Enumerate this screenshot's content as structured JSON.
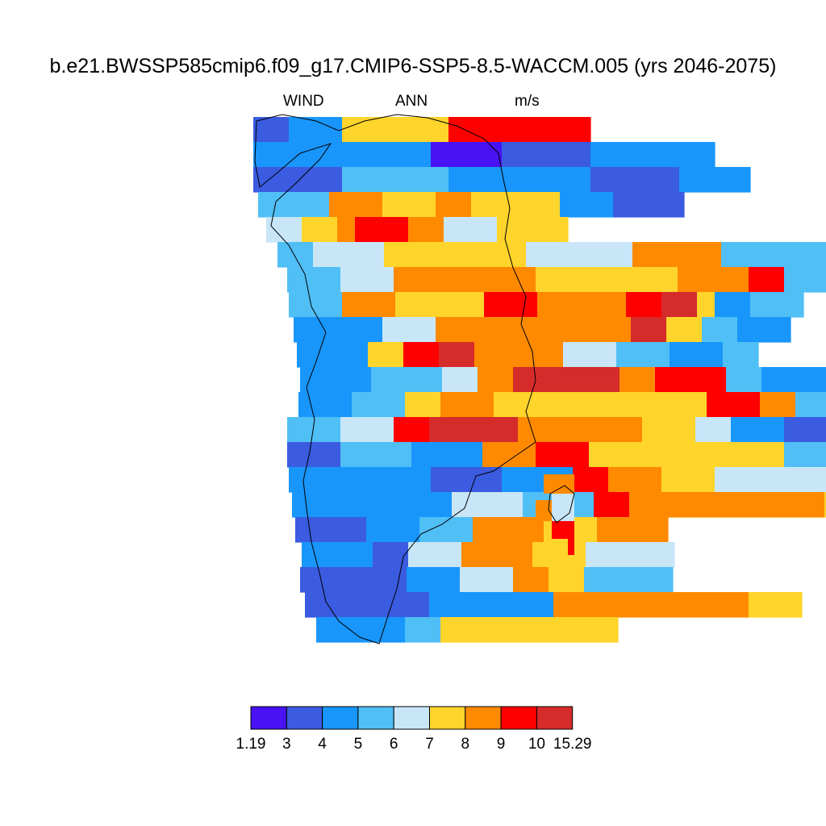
{
  "title": "b.e21.BWSSP585cmip6.f09_g17.CMIP6-SSP5-8.5-WACCM.005 (yrs 2046-2075)",
  "subtitle": {
    "variable": "WIND",
    "period": "ANN",
    "units": "m/s"
  },
  "colorbar": {
    "labels": [
      "1.19",
      "3",
      "4",
      "5",
      "6",
      "7",
      "8",
      "9",
      "10",
      "15.29"
    ],
    "colors": [
      "#4812f5",
      "#3b5be0",
      "#1896fb",
      "#50bff5",
      "#c8e6f7",
      "#ffd42b",
      "#ff8a00",
      "#ff0000",
      "#d62b2b"
    ],
    "bins": [
      [
        1.19,
        3
      ],
      [
        3,
        4
      ],
      [
        4,
        5
      ],
      [
        5,
        6
      ],
      [
        6,
        7
      ],
      [
        7,
        8
      ],
      [
        8,
        9
      ],
      [
        9,
        10
      ],
      [
        10,
        15.29
      ]
    ]
  },
  "map_data": {
    "region": "Greenland",
    "field": "WIND",
    "grid_rows_north_to_south": [
      [
        [
          1,
          2
        ],
        [
          2,
          3
        ],
        [
          5,
          6
        ],
        [
          0,
          0
        ],
        [
          7,
          8
        ]
      ],
      [
        [
          2,
          4
        ],
        [
          2,
          6
        ],
        [
          0,
          3
        ],
        [
          0,
          1
        ],
        [
          1,
          5
        ],
        [
          2,
          7
        ]
      ],
      [
        [
          1,
          3
        ],
        [
          1,
          2
        ],
        [
          3,
          6
        ],
        [
          2,
          8
        ],
        [
          1,
          5
        ],
        [
          2,
          4
        ]
      ],
      [
        [
          3,
          4
        ],
        [
          6,
          3
        ],
        [
          5,
          3
        ],
        [
          6,
          2
        ],
        [
          5,
          5
        ],
        [
          2,
          3
        ],
        [
          1,
          4
        ]
      ],
      [
        [
          4,
          2
        ],
        [
          5,
          2
        ],
        [
          6,
          1
        ],
        [
          7,
          3
        ],
        [
          6,
          2
        ],
        [
          4,
          3
        ],
        [
          5,
          4
        ]
      ],
      [
        [
          3,
          2
        ],
        [
          4,
          4
        ],
        [
          5,
          8
        ],
        [
          4,
          6
        ],
        [
          6,
          5
        ],
        [
          3,
          6
        ],
        [
          2,
          2
        ],
        [
          2,
          4
        ]
      ],
      [
        [
          3,
          3
        ],
        [
          4,
          3
        ],
        [
          6,
          8
        ],
        [
          5,
          8
        ],
        [
          6,
          4
        ],
        [
          7,
          2
        ],
        [
          3,
          4
        ]
      ],
      [
        [
          3,
          3
        ],
        [
          6,
          3
        ],
        [
          5,
          5
        ],
        [
          7,
          3
        ],
        [
          6,
          5
        ],
        [
          7,
          2
        ],
        [
          8,
          2
        ],
        [
          5,
          1
        ],
        [
          2,
          2
        ],
        [
          3,
          3
        ]
      ],
      [
        [
          2,
          5
        ],
        [
          4,
          3
        ],
        [
          6,
          5
        ],
        [
          6,
          6
        ],
        [
          8,
          2
        ],
        [
          5,
          2
        ],
        [
          3,
          2
        ],
        [
          2,
          3
        ]
      ],
      [
        [
          2,
          4
        ],
        [
          5,
          2
        ],
        [
          7,
          2
        ],
        [
          8,
          2
        ],
        [
          6,
          5
        ],
        [
          4,
          3
        ],
        [
          3,
          3
        ],
        [
          2,
          3
        ],
        [
          3,
          2
        ]
      ],
      [
        [
          2,
          4
        ],
        [
          3,
          4
        ],
        [
          4,
          2
        ],
        [
          6,
          2
        ],
        [
          8,
          3
        ],
        [
          8,
          3
        ],
        [
          6,
          2
        ],
        [
          7,
          4
        ],
        [
          3,
          2
        ],
        [
          2,
          6
        ]
      ],
      [
        [
          2,
          3
        ],
        [
          3,
          3
        ],
        [
          5,
          2
        ],
        [
          6,
          3
        ],
        [
          5,
          8
        ],
        [
          5,
          4
        ],
        [
          7,
          3
        ],
        [
          6,
          2
        ],
        [
          3,
          4
        ],
        [
          2,
          4
        ]
      ],
      [
        [
          3,
          3
        ],
        [
          4,
          3
        ],
        [
          7,
          2
        ],
        [
          8,
          5
        ],
        [
          6,
          4
        ],
        [
          6,
          3
        ],
        [
          5,
          3
        ],
        [
          4,
          2
        ],
        [
          2,
          3
        ],
        [
          1,
          4
        ]
      ],
      [
        [
          1,
          3
        ],
        [
          3,
          4
        ],
        [
          2,
          4
        ],
        [
          6,
          3
        ],
        [
          7,
          3
        ],
        [
          5,
          4
        ],
        [
          5,
          5
        ],
        [
          5,
          2
        ],
        [
          3,
          4
        ],
        [
          1,
          4
        ]
      ],
      [
        [
          2,
          5
        ],
        [
          2,
          3
        ],
        [
          1,
          4
        ],
        [
          2,
          4
        ],
        [
          7,
          2
        ],
        [
          6,
          3
        ],
        [
          5,
          3
        ],
        [
          4,
          5
        ],
        [
          4,
          6
        ],
        [
          5,
          6
        ]
      ],
      [
        [
          2,
          3
        ],
        [
          2,
          6
        ],
        [
          4,
          4
        ],
        [
          3,
          4
        ],
        [
          7,
          2
        ],
        [
          6,
          6
        ],
        [
          6,
          5
        ],
        [
          5,
          5
        ]
      ],
      [
        [
          1,
          4
        ],
        [
          2,
          3
        ],
        [
          3,
          3
        ],
        [
          6,
          4
        ],
        [
          5,
          3
        ],
        [
          6,
          4
        ]
      ],
      [
        [
          2,
          4
        ],
        [
          1,
          2
        ],
        [
          4,
          3
        ],
        [
          6,
          4
        ],
        [
          5,
          3
        ],
        [
          4,
          5
        ]
      ],
      [
        [
          1,
          6
        ],
        [
          2,
          3
        ],
        [
          4,
          3
        ],
        [
          6,
          2
        ],
        [
          5,
          2
        ],
        [
          3,
          5
        ]
      ],
      [
        [
          1,
          7
        ],
        [
          2,
          7
        ],
        [
          6,
          8
        ],
        [
          6,
          3
        ],
        [
          5,
          3
        ]
      ],
      [
        [
          2,
          5
        ],
        [
          3,
          2
        ],
        [
          5,
          4
        ],
        [
          5,
          6
        ]
      ]
    ]
  }
}
